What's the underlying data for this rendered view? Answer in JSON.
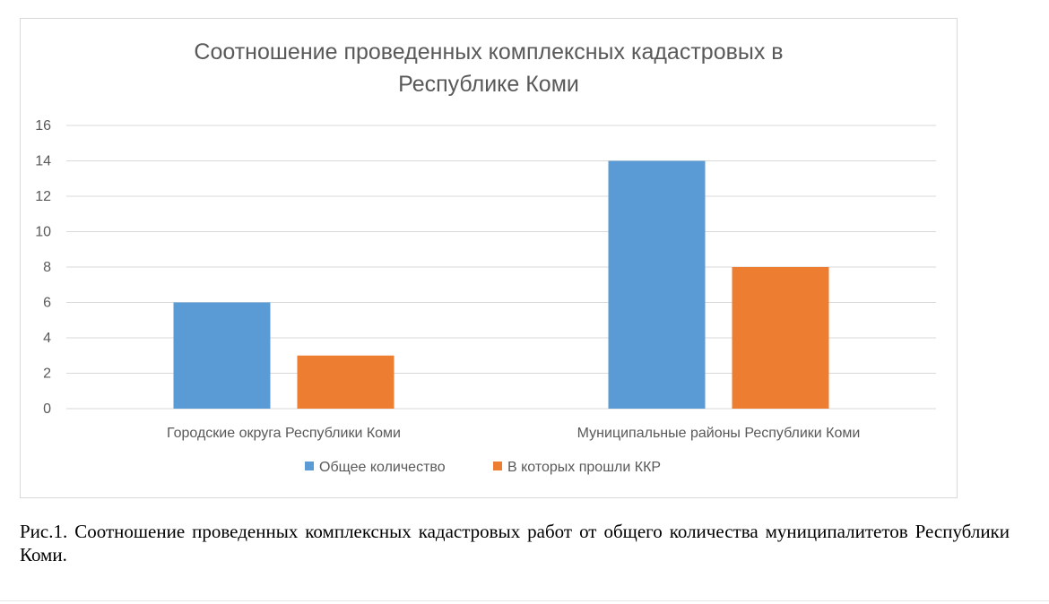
{
  "chart_data": {
    "type": "bar",
    "title_lines": [
      "Соотношение проведенных комплексных кадастровых в",
      "Республике Коми"
    ],
    "categories": [
      "Городские округа Республики Коми",
      "Муниципальные районы Республики Коми"
    ],
    "series": [
      {
        "name": "Общее количество",
        "values": [
          6,
          14
        ],
        "color": "#5b9bd5"
      },
      {
        "name": "В которых прошли ККР",
        "values": [
          3,
          8
        ],
        "color": "#ed7d31"
      }
    ],
    "ylim": [
      0,
      16
    ],
    "yticks": [
      0,
      2,
      4,
      6,
      8,
      10,
      12,
      14,
      16
    ],
    "grid": true,
    "legend": "bottom",
    "xlabel": "",
    "ylabel": ""
  },
  "caption": "Рис.1. Соотношение проведенных комплексных кадастровых работ от общего количества муниципалитетов Республики Коми."
}
